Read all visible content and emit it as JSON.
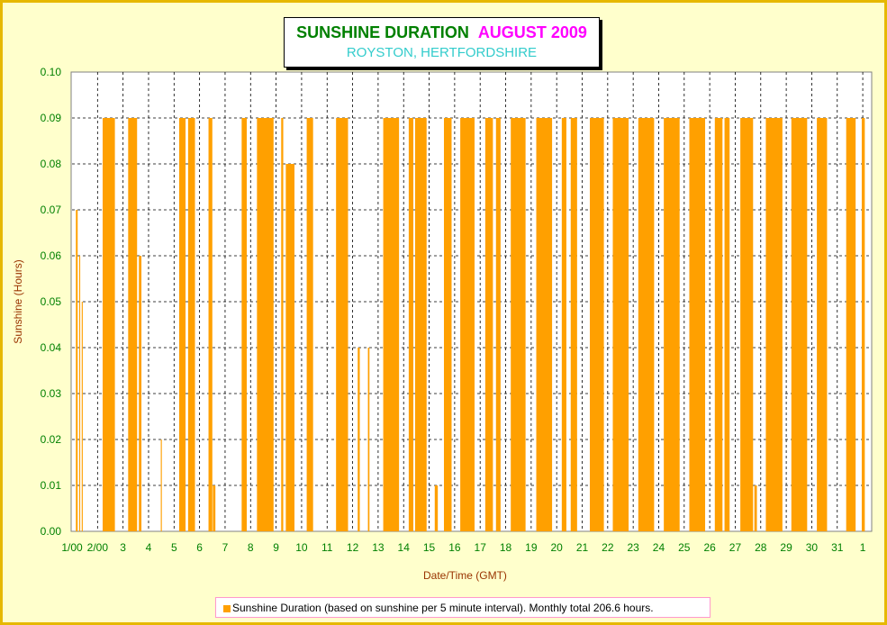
{
  "colors": {
    "sunshine": "#ffa000",
    "title_main": "#008000",
    "title_month": "#ff00ff",
    "title_sub": "#33cccc",
    "axis_text": "#008000",
    "axis_label": "#993300"
  },
  "chart_data": {
    "type": "bar",
    "title": "SUNSHINE DURATION",
    "title_month": "AUGUST 2009",
    "subtitle": "ROYSTON, HERTFORDSHIRE",
    "xlabel": "Date/Time (GMT)",
    "ylabel": "Sunshine (Hours)",
    "ylim": [
      0,
      0.1
    ],
    "y_ticks": [
      "0.00",
      "0.01",
      "0.02",
      "0.03",
      "0.04",
      "0.05",
      "0.06",
      "0.07",
      "0.08",
      "0.09",
      "0.10"
    ],
    "x_ticks": [
      "1/00",
      "2/00",
      "3",
      "4",
      "5",
      "6",
      "7",
      "8",
      "9",
      "10",
      "11",
      "12",
      "13",
      "14",
      "15",
      "16",
      "17",
      "18",
      "19",
      "20",
      "21",
      "22",
      "23",
      "24",
      "25",
      "26",
      "27",
      "28",
      "29",
      "30",
      "31",
      "1"
    ],
    "x_tick_days": [
      1,
      2,
      3,
      4,
      5,
      6,
      7,
      8,
      9,
      10,
      11,
      12,
      13,
      14,
      15,
      16,
      17,
      18,
      19,
      20,
      21,
      22,
      23,
      24,
      25,
      26,
      27,
      28,
      29,
      30,
      31,
      32
    ],
    "grid": true,
    "legend_position": "bottom",
    "series": [
      {
        "name": "Sunshine Duration (based on sunshine per 5 minute interval). Monthly total 206.6 hours.",
        "blocks": [
          [
            1.15,
            1.22,
            0.07
          ],
          [
            1.28,
            1.32,
            0.06
          ],
          [
            1.38,
            1.42,
            0.05
          ],
          [
            2.2,
            2.68,
            0.09
          ],
          [
            3.2,
            3.55,
            0.09
          ],
          [
            3.62,
            3.72,
            0.06
          ],
          [
            4.48,
            4.52,
            0.02
          ],
          [
            5.2,
            5.45,
            0.09
          ],
          [
            5.55,
            5.82,
            0.09
          ],
          [
            6.35,
            6.5,
            0.09
          ],
          [
            6.52,
            6.62,
            0.01
          ],
          [
            7.65,
            7.85,
            0.09
          ],
          [
            8.25,
            8.9,
            0.09
          ],
          [
            9.2,
            9.28,
            0.09
          ],
          [
            9.38,
            9.72,
            0.08
          ],
          [
            10.2,
            10.45,
            0.09
          ],
          [
            11.35,
            11.82,
            0.09
          ],
          [
            12.2,
            12.28,
            0.04
          ],
          [
            12.6,
            12.66,
            0.04
          ],
          [
            13.2,
            13.82,
            0.09
          ],
          [
            14.2,
            14.38,
            0.09
          ],
          [
            14.45,
            14.9,
            0.09
          ],
          [
            15.22,
            15.34,
            0.01
          ],
          [
            15.58,
            15.88,
            0.09
          ],
          [
            16.22,
            16.78,
            0.09
          ],
          [
            17.2,
            17.5,
            0.09
          ],
          [
            17.62,
            17.8,
            0.09
          ],
          [
            18.2,
            18.78,
            0.09
          ],
          [
            19.2,
            19.82,
            0.09
          ],
          [
            20.2,
            20.38,
            0.09
          ],
          [
            20.55,
            20.8,
            0.09
          ],
          [
            21.3,
            21.85,
            0.09
          ],
          [
            22.2,
            22.82,
            0.09
          ],
          [
            23.2,
            23.82,
            0.09
          ],
          [
            24.2,
            24.82,
            0.09
          ],
          [
            25.2,
            25.82,
            0.09
          ],
          [
            26.2,
            26.5,
            0.09
          ],
          [
            26.58,
            26.78,
            0.09
          ],
          [
            27.2,
            27.7,
            0.09
          ],
          [
            27.75,
            27.85,
            0.01
          ],
          [
            28.2,
            28.85,
            0.09
          ],
          [
            29.2,
            29.82,
            0.09
          ],
          [
            30.2,
            30.6,
            0.09
          ],
          [
            31.35,
            31.72,
            0.09
          ],
          [
            31.96,
            32.08,
            0.09
          ]
        ]
      }
    ]
  }
}
